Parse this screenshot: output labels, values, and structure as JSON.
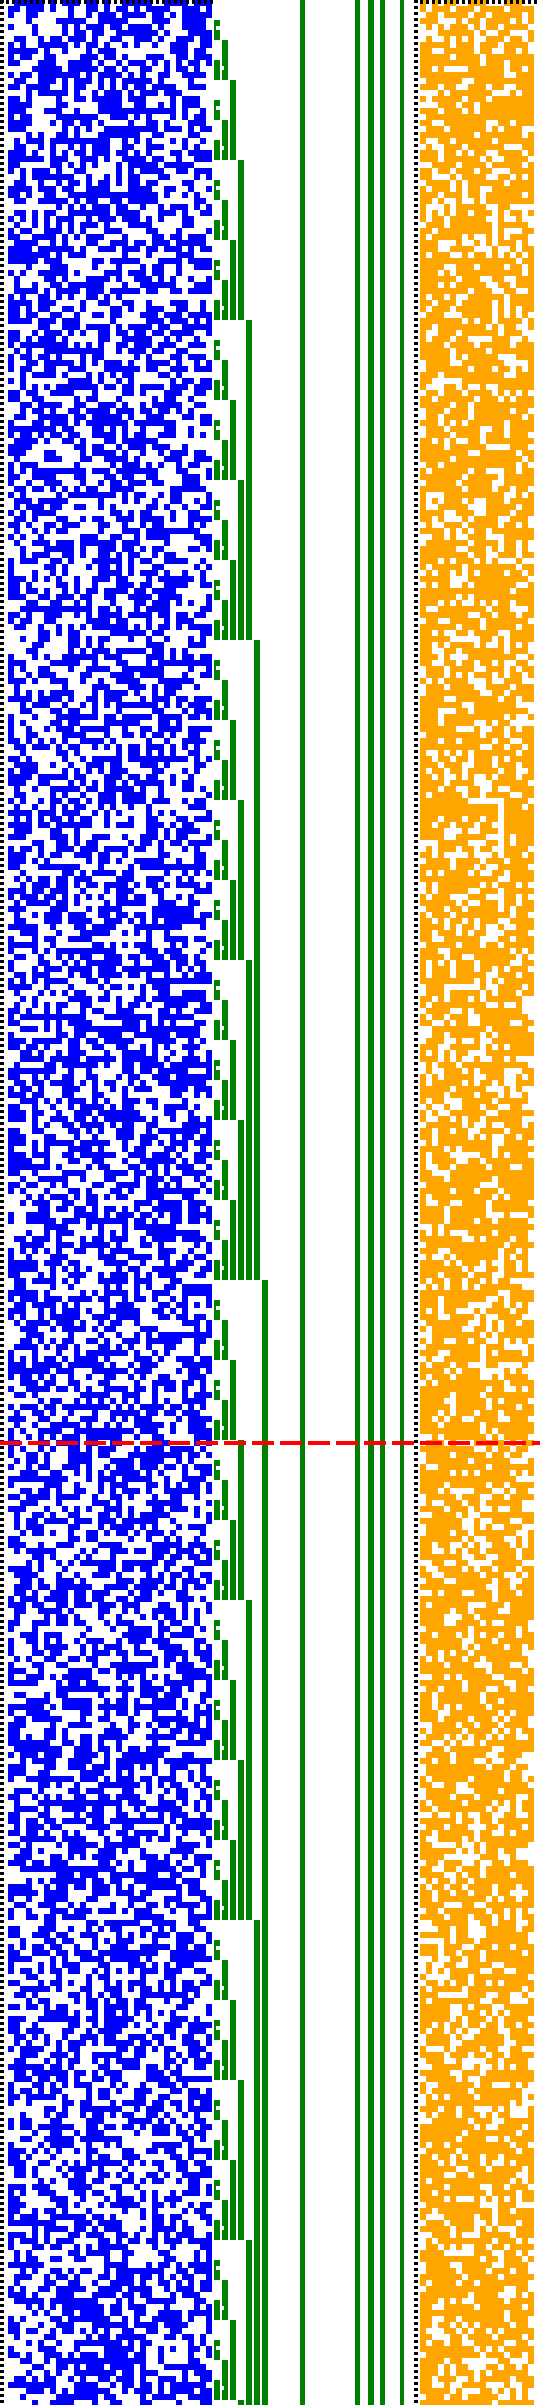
{
  "palette": {
    "background": "#ffffff",
    "bits": "#0000ff",
    "counter": "#008000",
    "noise": "#ffa500",
    "marker": "#ff0000",
    "border": "#000000"
  },
  "panels": [
    {
      "name": "random-bit-field",
      "color": "#0000ff"
    },
    {
      "name": "binary-counter-ladder",
      "color": "#008000"
    },
    {
      "name": "noise-band",
      "color": "#ffa500"
    }
  ],
  "marker": {
    "name": "red-dashed-separator",
    "style": "dashed"
  },
  "frame": {
    "name": "dotted-frame",
    "style": "dotted"
  }
}
